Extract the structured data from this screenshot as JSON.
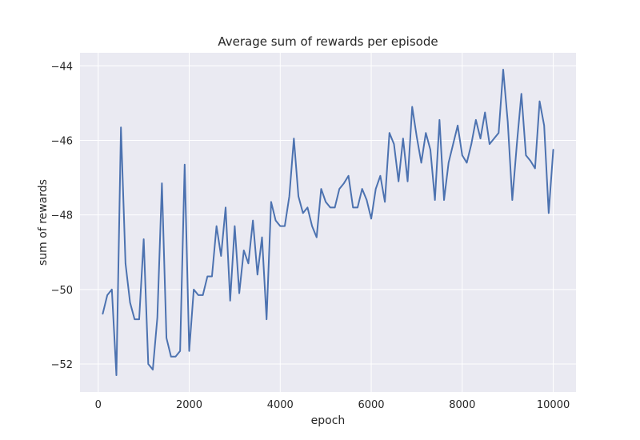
{
  "chart_data": {
    "type": "line",
    "title": "Average sum of rewards per episode",
    "xlabel": "epoch",
    "ylabel": "sum of rewards",
    "xlim": [
      -400,
      10500
    ],
    "ylim": [
      -52.75,
      -43.65
    ],
    "xticks": [
      0,
      2000,
      4000,
      6000,
      8000,
      10000
    ],
    "xtick_labels": [
      "0",
      "2000",
      "4000",
      "6000",
      "8000",
      "10000"
    ],
    "yticks": [
      -52,
      -50,
      -48,
      -46,
      -44
    ],
    "ytick_labels": [
      "−52",
      "−50",
      "−48",
      "−46",
      "−44"
    ],
    "grid": true,
    "line_color": "#4c72b0",
    "background_color": "#eaeaf2",
    "series": [
      {
        "x": [
          100,
          200,
          300,
          400,
          500,
          600,
          700,
          800,
          900,
          1000,
          1100,
          1200,
          1300,
          1400,
          1500,
          1600,
          1700,
          1800,
          1900,
          2000,
          2100,
          2200,
          2300,
          2400,
          2500,
          2600,
          2700,
          2800,
          2900,
          3000,
          3100,
          3200,
          3300,
          3400,
          3500,
          3600,
          3700,
          3800,
          3900,
          4000,
          4100,
          4200,
          4300,
          4400,
          4500,
          4600,
          4700,
          4800,
          4900,
          5000,
          5100,
          5200,
          5300,
          5400,
          5500,
          5600,
          5700,
          5800,
          5900,
          6000,
          6100,
          6200,
          6300,
          6400,
          6500,
          6600,
          6700,
          6800,
          6900,
          7000,
          7100,
          7200,
          7300,
          7400,
          7500,
          7600,
          7700,
          7800,
          7900,
          8000,
          8100,
          8200,
          8300,
          8400,
          8500,
          8600,
          8700,
          8800,
          8900,
          9000,
          9100,
          9200,
          9300,
          9400,
          9500,
          9600,
          9700,
          9800,
          9900,
          10000
        ],
        "values": [
          -50.65,
          -50.15,
          -50.0,
          -52.3,
          -45.65,
          -49.3,
          -50.35,
          -50.8,
          -50.8,
          -48.65,
          -52.0,
          -52.15,
          -50.75,
          -47.15,
          -51.3,
          -51.8,
          -51.8,
          -51.65,
          -46.65,
          -51.65,
          -50.0,
          -50.15,
          -50.15,
          -49.65,
          -49.65,
          -48.3,
          -49.1,
          -47.8,
          -50.3,
          -48.3,
          -50.1,
          -48.95,
          -49.3,
          -48.15,
          -49.6,
          -48.6,
          -50.8,
          -47.65,
          -48.15,
          -48.3,
          -48.3,
          -47.5,
          -45.95,
          -47.5,
          -47.95,
          -47.8,
          -48.3,
          -48.6,
          -47.3,
          -47.65,
          -47.8,
          -47.8,
          -47.3,
          -47.15,
          -46.95,
          -47.8,
          -47.8,
          -47.3,
          -47.6,
          -48.1,
          -47.3,
          -46.95,
          -47.65,
          -45.8,
          -46.1,
          -47.1,
          -45.95,
          -47.1,
          -45.1,
          -45.9,
          -46.6,
          -45.8,
          -46.25,
          -47.6,
          -45.45,
          -47.6,
          -46.6,
          -46.1,
          -45.6,
          -46.4,
          -46.6,
          -46.1,
          -45.45,
          -45.95,
          -45.25,
          -46.1,
          -45.95,
          -45.8,
          -44.1,
          -45.5,
          -47.6,
          -46.1,
          -44.75,
          -46.4,
          -46.55,
          -46.75,
          -44.95,
          -45.6,
          -47.95,
          -46.25
        ]
      }
    ]
  }
}
